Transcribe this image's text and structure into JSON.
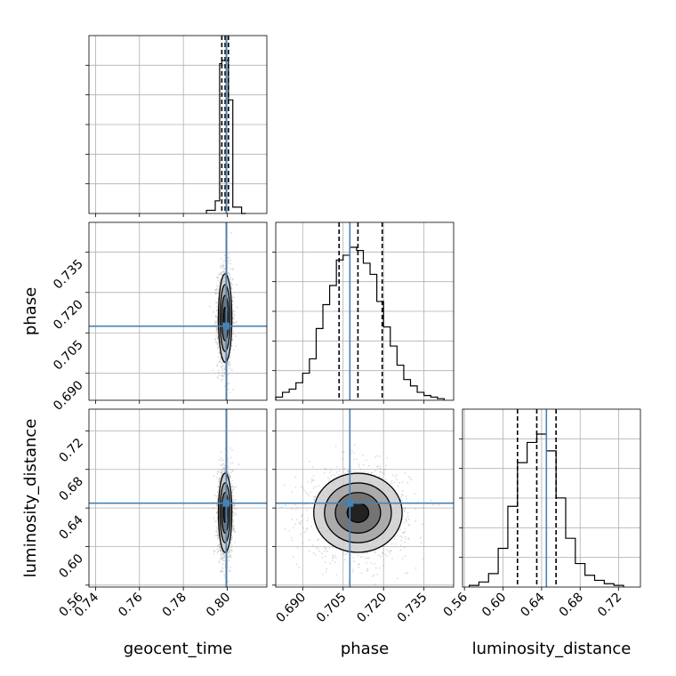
{
  "chart_data": {
    "type": "corner",
    "parameters": [
      "geocent_time",
      "phase",
      "luminosity_distance"
    ],
    "ranges": {
      "geocent_time": [
        0.737,
        0.818
      ],
      "phase": [
        0.68,
        0.746
      ],
      "luminosity_distance": [
        0.558,
        0.7425
      ]
    },
    "ticks": {
      "geocent_time": [
        0.74,
        0.76,
        0.78,
        0.8
      ],
      "phase": [
        0.69,
        0.705,
        0.72,
        0.735
      ],
      "luminosity_distance": [
        0.56,
        0.6,
        0.64,
        0.68,
        0.72
      ]
    },
    "tick_labels": {
      "geocent_time": [
        "0.74",
        "0.76",
        "0.78",
        "0.80"
      ],
      "phase": [
        "0.690",
        "0.705",
        "0.720",
        "0.735"
      ],
      "luminosity_distance": [
        "0.56",
        "0.60",
        "0.64",
        "0.68",
        "0.72"
      ]
    },
    "truths": {
      "geocent_time": 0.7995,
      "phase": 0.7075,
      "luminosity_distance": 0.645
    },
    "quantiles": {
      "geocent_time": [
        0.7975,
        0.799,
        0.8005
      ],
      "phase": [
        0.7035,
        0.7105,
        0.7195
      ],
      "luminosity_distance": [
        0.615,
        0.635,
        0.655
      ]
    },
    "histograms": {
      "geocent_time": {
        "edges": [
          0.7905,
          0.7945,
          0.7965,
          0.7975,
          0.7985,
          0.7995,
          0.8005,
          0.8015,
          0.8025,
          0.8065,
          0.8085
        ],
        "counts": [
          2,
          8,
          95,
          97,
          97,
          97,
          72,
          72,
          4,
          0
        ]
      },
      "phase": {
        "edges": [
          0.68,
          0.6825,
          0.685,
          0.6875,
          0.69,
          0.6925,
          0.695,
          0.6975,
          0.7,
          0.7025,
          0.705,
          0.7075,
          0.71,
          0.7125,
          0.715,
          0.7175,
          0.72,
          0.7225,
          0.725,
          0.7275,
          0.73,
          0.7325,
          0.735,
          0.7375,
          0.74,
          0.7425
        ],
        "counts": [
          2,
          5,
          7,
          11,
          17,
          26,
          45,
          60,
          72,
          88,
          91,
          96,
          94,
          86,
          79,
          62,
          46,
          34,
          22,
          13,
          9,
          5,
          3,
          2,
          1
        ]
      },
      "luminosity_distance": {
        "edges": [
          0.565,
          0.575,
          0.585,
          0.595,
          0.605,
          0.615,
          0.625,
          0.635,
          0.645,
          0.655,
          0.665,
          0.675,
          0.685,
          0.695,
          0.705,
          0.715,
          0.725
        ],
        "counts": [
          1,
          3,
          8,
          23,
          48,
          74,
          86,
          91,
          81,
          53,
          29,
          14,
          7,
          4,
          2,
          1
        ]
      }
    },
    "scatter_style": "grey points with filled density contours"
  }
}
